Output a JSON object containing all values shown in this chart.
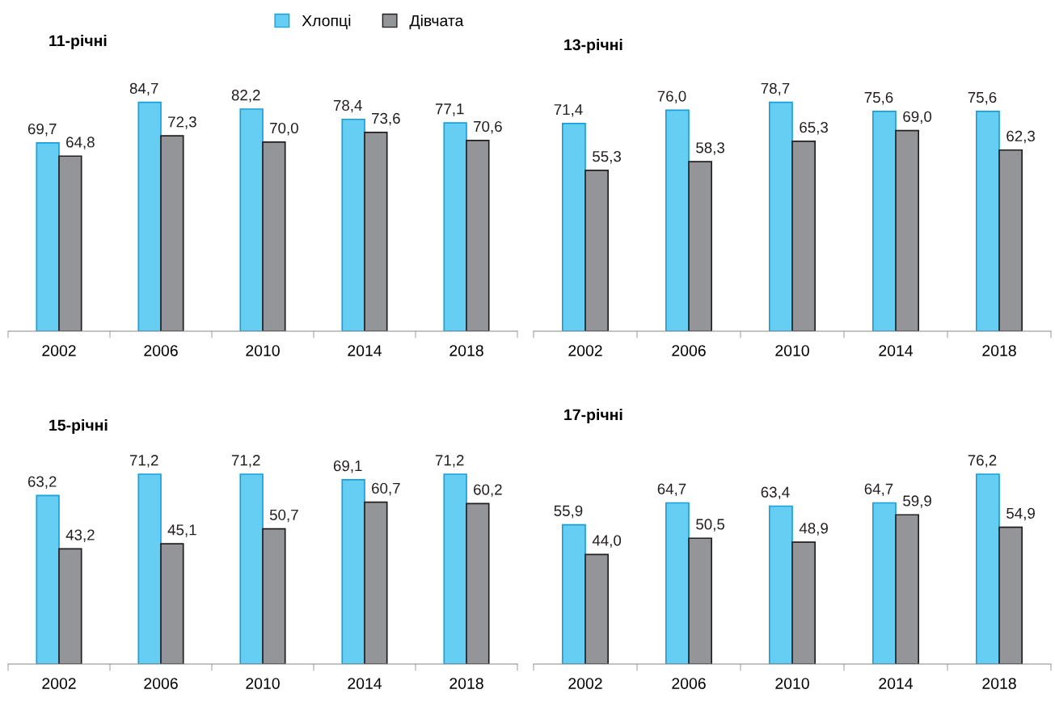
{
  "chart_data": [
    {
      "type": "bar",
      "title": "11-річні",
      "categories": [
        "2002",
        "2006",
        "2010",
        "2014",
        "2018"
      ],
      "legend": "top",
      "series": [
        {
          "name": "Хлопці",
          "color": "#66cdf3",
          "values": [
            69.7,
            84.7,
            82.2,
            78.4,
            77.1
          ],
          "value_labels": [
            "69,7",
            "84,7",
            "82,2",
            "78,4",
            "77,1"
          ]
        },
        {
          "name": "Дівчата",
          "color": "#939598",
          "values": [
            64.8,
            72.3,
            70.0,
            73.6,
            70.6
          ],
          "value_labels": [
            "64,8",
            "72,3",
            "70,0",
            "73,6",
            "70,6"
          ]
        }
      ]
    },
    {
      "type": "bar",
      "title": "13-річні",
      "categories": [
        "2002",
        "2006",
        "2010",
        "2014",
        "2018"
      ],
      "series": [
        {
          "name": "Хлопці",
          "color": "#66cdf3",
          "values": [
            71.4,
            76.0,
            78.7,
            75.6,
            75.6
          ],
          "value_labels": [
            "71,4",
            "76,0",
            "78,7",
            "75,6",
            "75,6"
          ]
        },
        {
          "name": "Дівчата",
          "color": "#939598",
          "values": [
            55.3,
            58.3,
            65.3,
            69.0,
            62.3
          ],
          "value_labels": [
            "55,3",
            "58,3",
            "65,3",
            "69,0",
            "62,3"
          ]
        }
      ]
    },
    {
      "type": "bar",
      "title": "15-річні",
      "categories": [
        "2002",
        "2006",
        "2010",
        "2014",
        "2018"
      ],
      "series": [
        {
          "name": "Хлопці",
          "color": "#66cdf3",
          "values": [
            63.2,
            71.2,
            71.2,
            69.1,
            71.2
          ],
          "value_labels": [
            "63,2",
            "71,2",
            "71,2",
            "69,1",
            "71,2"
          ]
        },
        {
          "name": "Дівчата",
          "color": "#939598",
          "values": [
            43.2,
            45.1,
            50.7,
            60.7,
            60.2
          ],
          "value_labels": [
            "43,2",
            "45,1",
            "50,7",
            "60,7",
            "60,2"
          ]
        }
      ]
    },
    {
      "type": "bar",
      "title": "17-річні",
      "categories": [
        "2002",
        "2006",
        "2010",
        "2014",
        "2018"
      ],
      "series": [
        {
          "name": "Хлопці",
          "color": "#66cdf3",
          "values": [
            55.9,
            64.7,
            63.4,
            64.7,
            76.2
          ],
          "value_labels": [
            "55,9",
            "64,7",
            "63,4",
            "64,7",
            "76,2"
          ]
        },
        {
          "name": "Дівчата",
          "color": "#939598",
          "values": [
            44.0,
            50.5,
            48.9,
            59.9,
            54.9
          ],
          "value_labels": [
            "44,0",
            "50,5",
            "48,9",
            "59,9",
            "54,9"
          ]
        }
      ]
    }
  ]
}
